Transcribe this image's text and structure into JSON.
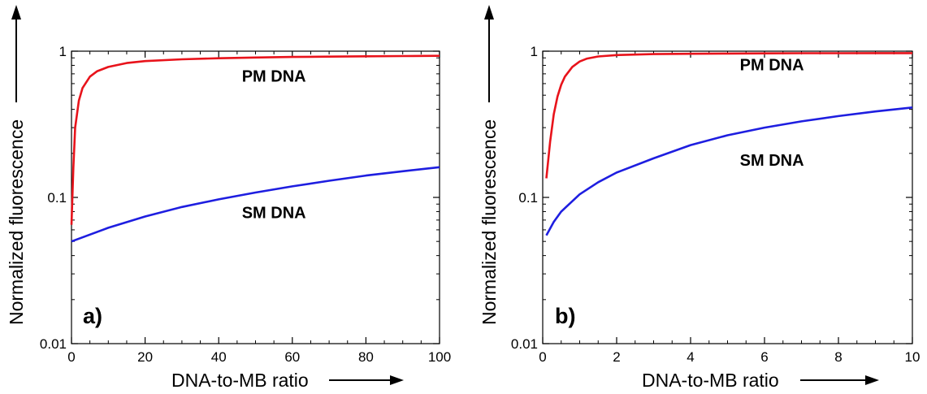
{
  "chart_data": [
    {
      "type": "line",
      "panel_label": "a)",
      "xlabel": "DNA-to-MB ratio",
      "ylabel": "Normalized fluorescence",
      "xlim": [
        0,
        100
      ],
      "ylim": [
        0.01,
        1
      ],
      "y_scale": "log",
      "x_ticks": [
        "0",
        "20",
        "40",
        "60",
        "80",
        "100"
      ],
      "y_ticks": [
        "0.01",
        "0.1",
        "1"
      ],
      "series": [
        {
          "name": "PM DNA",
          "color": "#e8131b",
          "x": [
            0,
            0.5,
            1,
            2,
            3,
            5,
            7,
            10,
            15,
            20,
            30,
            40,
            50,
            60,
            70,
            80,
            90,
            100
          ],
          "y": [
            0.065,
            0.16,
            0.3,
            0.46,
            0.56,
            0.67,
            0.73,
            0.78,
            0.83,
            0.855,
            0.88,
            0.895,
            0.905,
            0.913,
            0.918,
            0.922,
            0.926,
            0.93
          ]
        },
        {
          "name": "SM DNA",
          "color": "#1e1ee0",
          "x": [
            0,
            10,
            20,
            30,
            40,
            50,
            60,
            70,
            80,
            90,
            100
          ],
          "y": [
            0.05,
            0.062,
            0.074,
            0.086,
            0.097,
            0.108,
            0.119,
            0.13,
            0.141,
            0.151,
            0.161
          ]
        }
      ],
      "annotations": [
        {
          "text": "PM DNA",
          "x": 55,
          "y": 0.62
        },
        {
          "text": "SM DNA",
          "x": 55,
          "y": 0.072
        }
      ]
    },
    {
      "type": "line",
      "panel_label": "b)",
      "xlabel": "DNA-to-MB ratio",
      "ylabel": "Normalized fluorescence",
      "xlim": [
        0,
        10
      ],
      "ylim": [
        0.01,
        1
      ],
      "y_scale": "log",
      "x_ticks": [
        "0",
        "2",
        "4",
        "6",
        "8",
        "10"
      ],
      "y_ticks": [
        "0.01",
        "0.1",
        "1"
      ],
      "series": [
        {
          "name": "PM DNA",
          "color": "#e8131b",
          "x": [
            0.1,
            0.2,
            0.3,
            0.4,
            0.5,
            0.6,
            0.8,
            1.0,
            1.2,
            1.5,
            2,
            3,
            4,
            5,
            6,
            7,
            8,
            9,
            10
          ],
          "y": [
            0.135,
            0.24,
            0.37,
            0.49,
            0.59,
            0.67,
            0.78,
            0.85,
            0.89,
            0.92,
            0.94,
            0.955,
            0.96,
            0.964,
            0.966,
            0.968,
            0.969,
            0.97,
            0.97
          ]
        },
        {
          "name": "SM DNA",
          "color": "#1e1ee0",
          "x": [
            0.1,
            0.3,
            0.5,
            1,
            1.5,
            2,
            3,
            4,
            5,
            6,
            7,
            8,
            9,
            10
          ],
          "y": [
            0.055,
            0.068,
            0.08,
            0.105,
            0.127,
            0.148,
            0.185,
            0.228,
            0.266,
            0.3,
            0.331,
            0.36,
            0.387,
            0.412
          ]
        }
      ],
      "annotations": [
        {
          "text": "PM DNA",
          "x": 6.2,
          "y": 0.74
        },
        {
          "text": "SM DNA",
          "x": 6.2,
          "y": 0.165
        }
      ]
    }
  ]
}
